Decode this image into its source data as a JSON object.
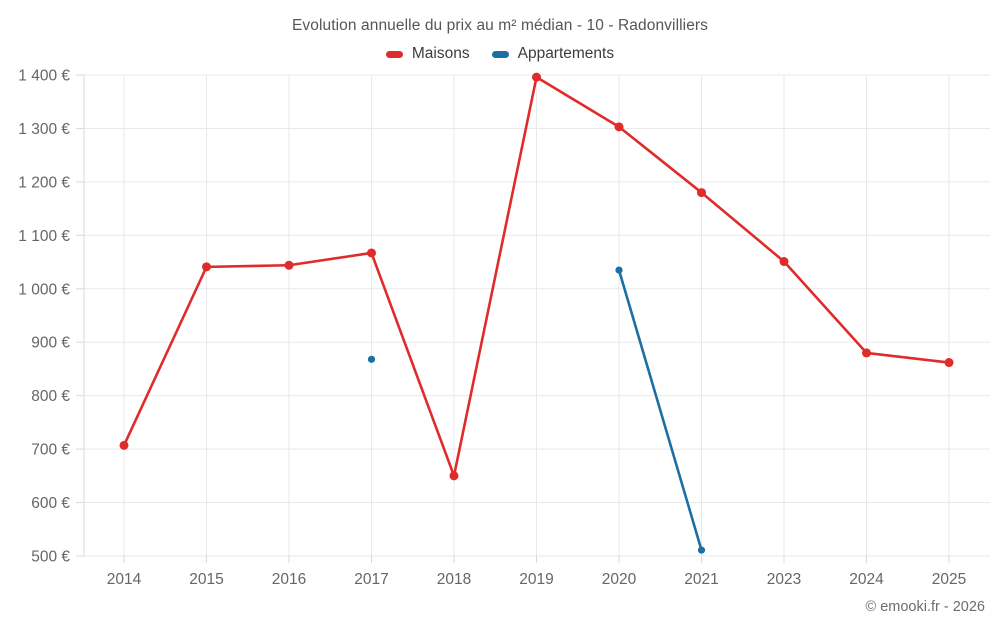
{
  "header": {
    "title": "Evolution annuelle du prix au m² médian - 10 - Radonvilliers"
  },
  "legend": {
    "items": [
      {
        "label": "Maisons",
        "color": "#e02b2b"
      },
      {
        "label": "Appartements",
        "color": "#1c6ea4"
      }
    ]
  },
  "footer": {
    "credit": "© emooki.fr - 2026"
  },
  "chart_data": {
    "type": "line",
    "title": "Evolution annuelle du prix au m² médian - 10 - Radonvilliers",
    "categories": [
      "2014",
      "2015",
      "2016",
      "2017",
      "2018",
      "2019",
      "2020",
      "2021",
      "2023",
      "2024",
      "2025"
    ],
    "series": [
      {
        "name": "Maisons",
        "color": "#e02b2b",
        "marker_radius": 4.5,
        "values": [
          707,
          1041,
          1044,
          1067,
          650,
          1396,
          1303,
          1180,
          1051,
          880,
          862
        ]
      },
      {
        "name": "Appartements",
        "color": "#1c6ea4",
        "marker_radius": 3.6,
        "values": [
          null,
          null,
          null,
          868,
          null,
          null,
          1035,
          511,
          null,
          null,
          null
        ]
      }
    ],
    "xlabel": "",
    "ylabel": "",
    "ylim": [
      500,
      1400
    ],
    "y_tick_step": 100,
    "y_tick_labels": [
      "500 €",
      "600 €",
      "700 €",
      "800 €",
      "900 €",
      "1 000 €",
      "1 100 €",
      "1 200 €",
      "1 300 €",
      "1 400 €"
    ],
    "grid": true,
    "legend_position": "top",
    "currency_symbol": "€"
  },
  "colors": {
    "grid": "#e9e9e9",
    "axis": "#d9d9d9",
    "tick_label": "#666666",
    "title_text": "#565656",
    "legend_text": "#3c3c3c",
    "footer_text": "#6e6e6e",
    "background": "#ffffff"
  }
}
